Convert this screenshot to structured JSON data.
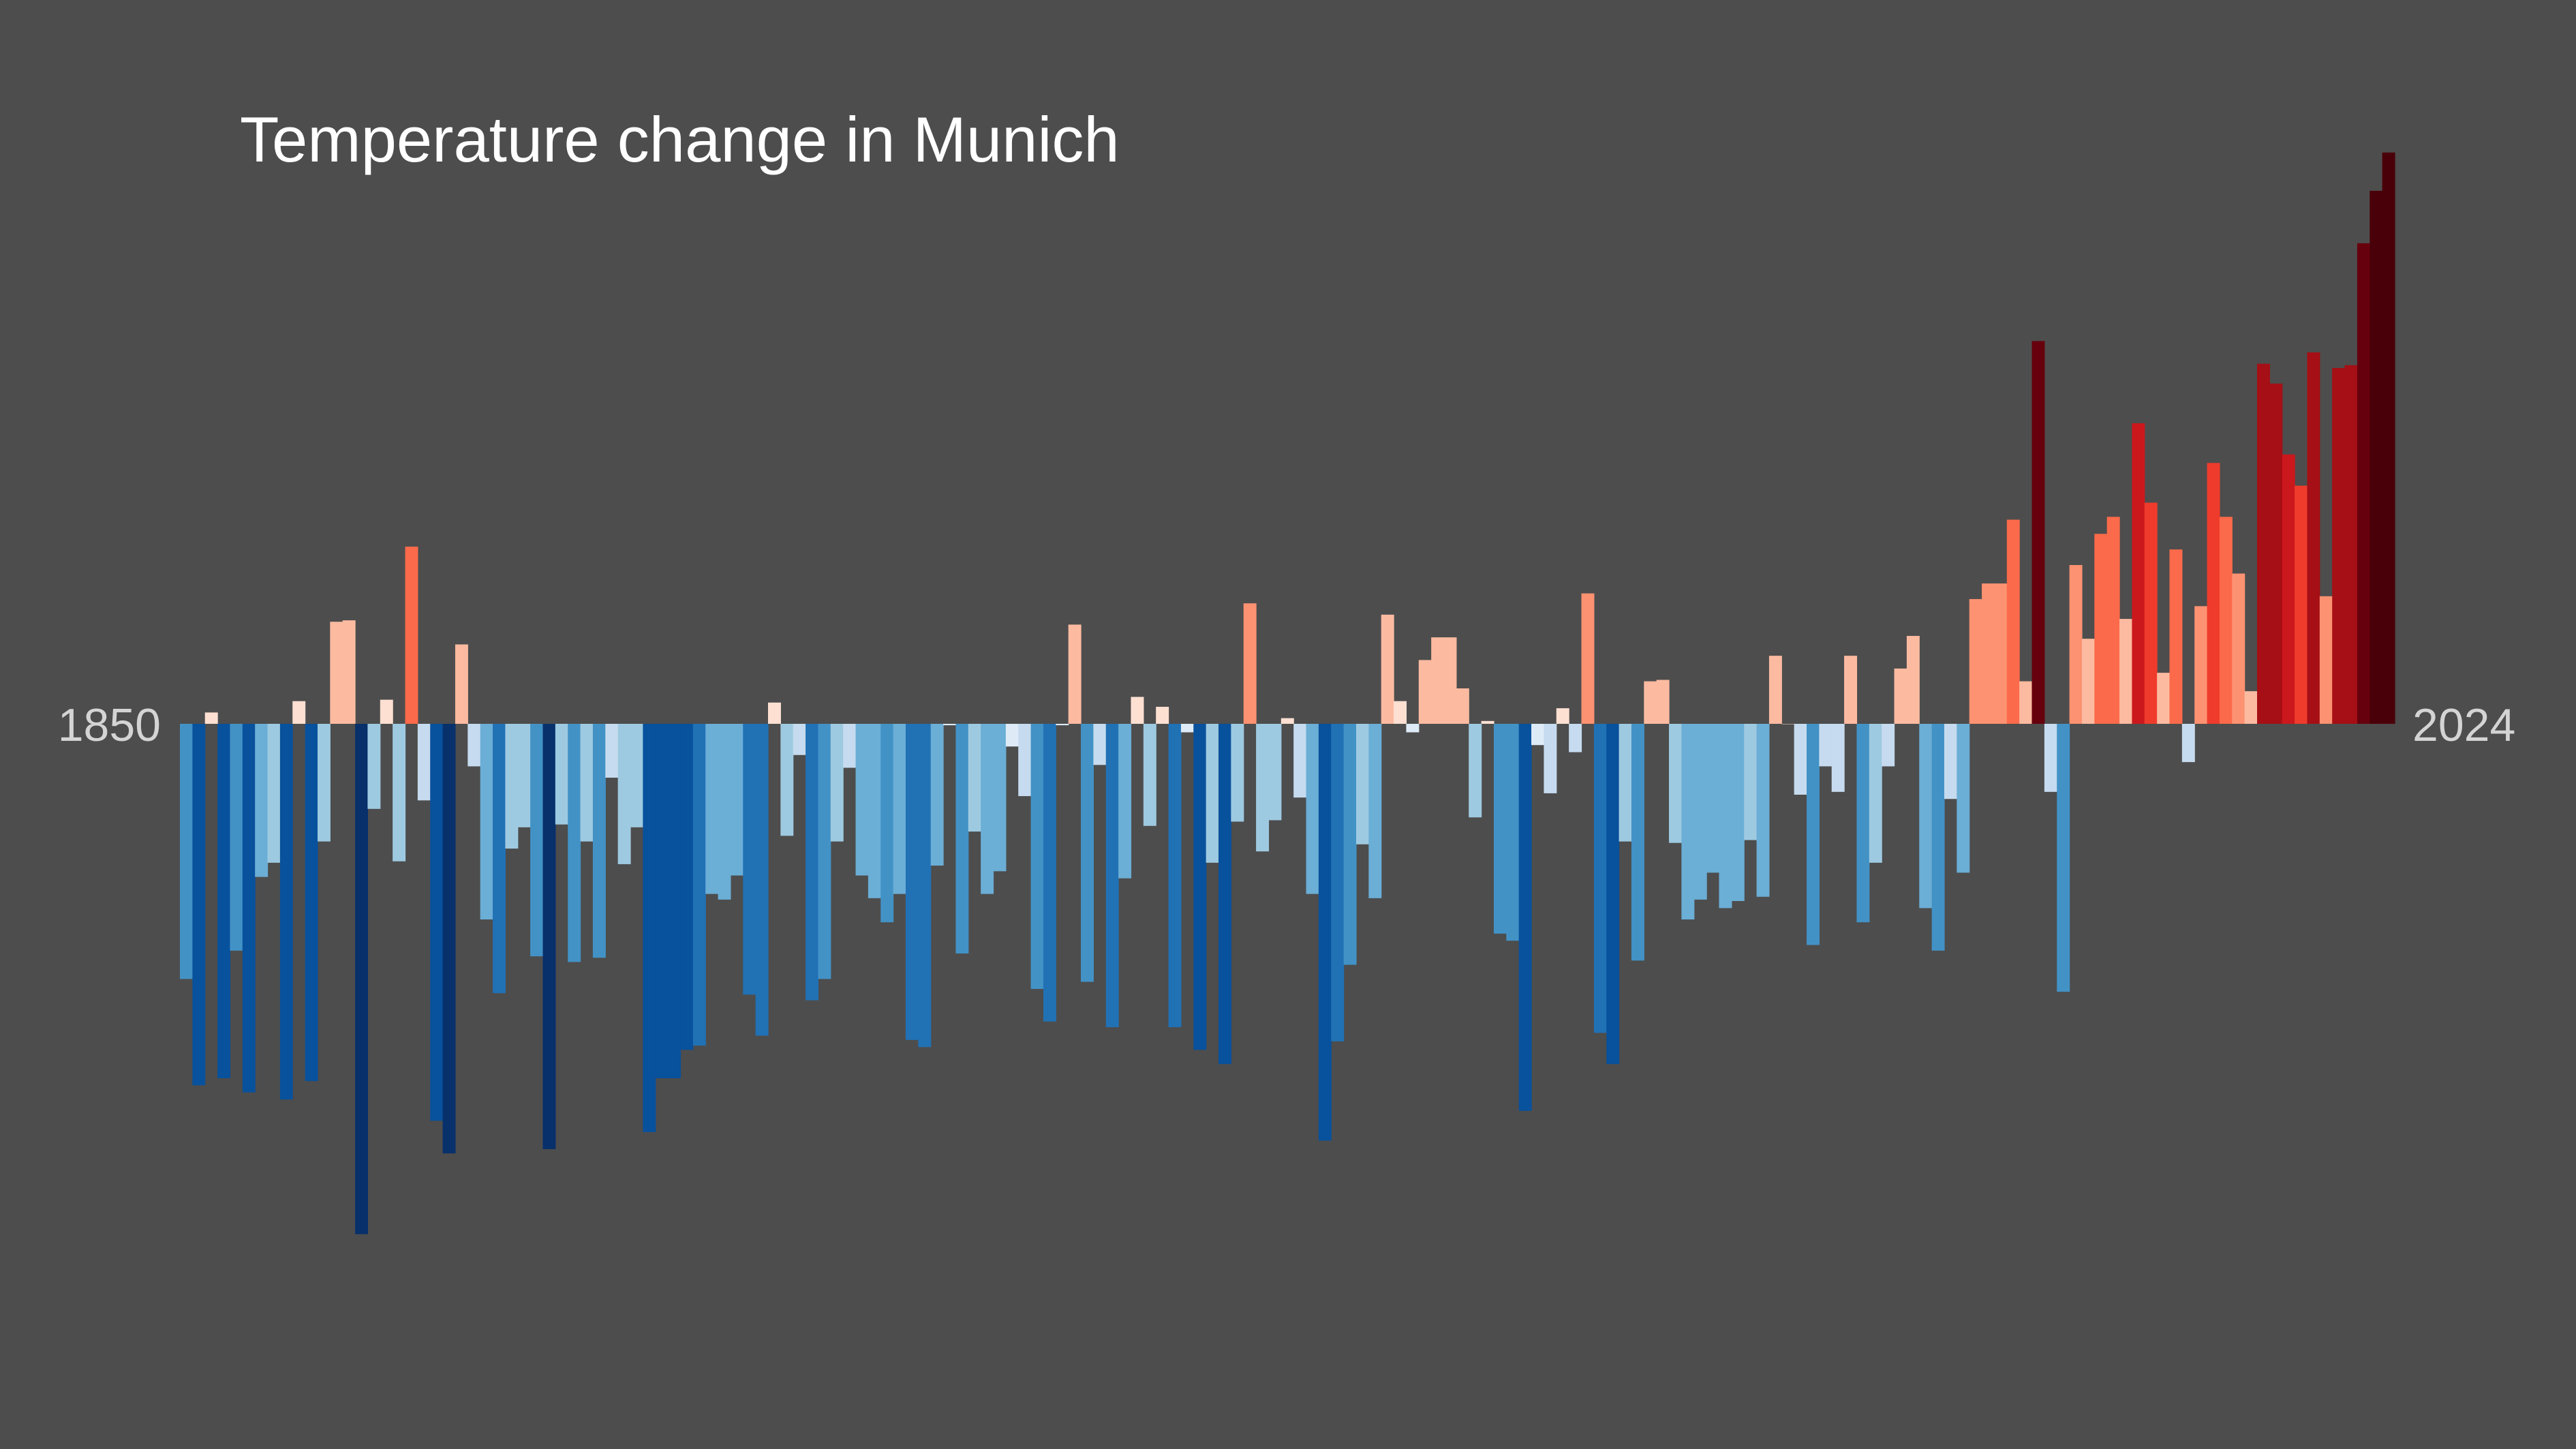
{
  "chart_data": {
    "type": "bar",
    "title": "Temperature change in Munich",
    "x_start_label": "1850",
    "x_end_label": "2024",
    "x_start": 1850,
    "x_end": 2024,
    "xlabel": "",
    "ylabel": "",
    "ylim": [
      -3.6,
      4.3
    ],
    "grid": false,
    "legend": "none",
    "colormap": "blue-to-red diverging (colder darker blue, warmer darker red)",
    "colors": [
      "#08306b",
      "#08519c",
      "#2171b5",
      "#4292c6",
      "#6baed6",
      "#9ecae1",
      "#c6dbef",
      "#deebf7",
      "#fee0d2",
      "#fcbba1",
      "#fc9272",
      "#fb6a4a",
      "#ef3b2c",
      "#cb181d",
      "#a50f15",
      "#67000d",
      "#4a0008"
    ],
    "values": [
      -1.8,
      -2.55,
      0.08,
      -2.5,
      -1.6,
      -2.6,
      -1.08,
      -0.98,
      -2.65,
      0.16,
      -2.52,
      -0.83,
      0.72,
      0.73,
      -3.6,
      -0.6,
      0.17,
      -0.97,
      1.25,
      -0.54,
      -2.8,
      -3.03,
      0.56,
      -0.3,
      -1.38,
      -1.9,
      -0.88,
      -0.73,
      -1.64,
      -3.0,
      -0.71,
      -1.68,
      -0.83,
      -1.65,
      -0.38,
      -0.99,
      -0.73,
      -2.88,
      -2.5,
      -2.5,
      -2.3,
      -2.27,
      -1.2,
      -1.24,
      -1.07,
      -1.91,
      -2.2,
      0.15,
      -0.79,
      -0.22,
      -1.95,
      -1.8,
      -0.83,
      -0.31,
      -1.07,
      -1.23,
      -1.4,
      -1.2,
      -2.23,
      -2.28,
      -1.0,
      -0.01,
      -1.62,
      -0.76,
      -1.2,
      -1.04,
      -0.16,
      -0.51,
      -1.87,
      -2.1,
      -0.01,
      0.7,
      -1.82,
      -0.29,
      -2.14,
      -1.09,
      0.19,
      -0.72,
      0.12,
      -2.14,
      -0.06,
      -2.3,
      -0.98,
      -2.4,
      -0.69,
      0.85,
      -0.9,
      -0.68,
      0.04,
      -0.52,
      -1.2,
      -2.94,
      -2.24,
      -1.7,
      -0.85,
      -1.23,
      0.77,
      0.16,
      -0.06,
      0.45,
      0.61,
      0.61,
      0.25,
      -0.66,
      0.02,
      -1.48,
      -1.53,
      -2.73,
      -0.15,
      -0.49,
      0.11,
      -0.2,
      0.92,
      -2.18,
      -2.4,
      -0.83,
      -1.67,
      0.3,
      0.31,
      -0.84,
      -1.38,
      -1.24,
      -1.05,
      -1.3,
      -1.25,
      -0.82,
      -1.22,
      0.48,
      0.0,
      -0.5,
      -1.56,
      -0.3,
      -0.48,
      0.48,
      -1.4,
      -0.98,
      -0.3,
      0.39,
      0.62,
      -1.3,
      -1.6,
      -0.53,
      -1.05,
      0.88,
      0.99,
      0.99,
      1.44,
      0.3,
      2.7,
      -0.48,
      -1.89,
      1.12,
      0.6,
      1.34,
      1.46,
      0.74,
      2.12,
      1.56,
      0.36,
      1.23,
      -0.27,
      0.83,
      1.84,
      1.46,
      1.06,
      0.23,
      2.54,
      2.4,
      1.9,
      1.68,
      2.62,
      0.9,
      2.51,
      2.53,
      3.39,
      3.76,
      4.03
    ]
  }
}
